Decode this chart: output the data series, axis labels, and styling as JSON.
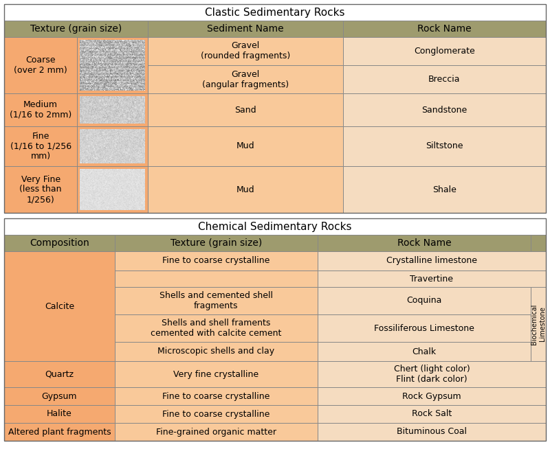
{
  "title_clastic": "Clastic Sedimentary Rocks",
  "title_chemical": "Chemical Sedimentary Rocks",
  "colors": {
    "header_bg": "#9e9b6e",
    "orange_bg": "#f5a970",
    "light_orange_bg": "#f9c99a",
    "cream_bg": "#f5dcc0",
    "white_bg": "#ffffff",
    "border": "#888888",
    "text": "#000000"
  },
  "clastic_headers": [
    "Texture (grain size)",
    "Sediment Name",
    "Rock Name"
  ],
  "chemical_headers": [
    "Composition",
    "Texture (grain size)",
    "Rock Name"
  ]
}
